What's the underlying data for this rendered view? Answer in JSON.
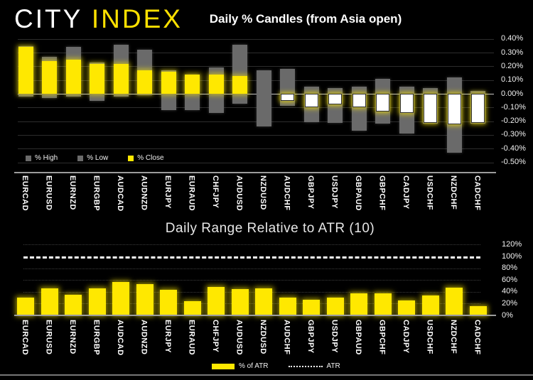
{
  "header": {
    "logo_city": "CITY",
    "logo_index": "INDEX"
  },
  "colors": {
    "background": "#000000",
    "bar_yellow": "#ffe800",
    "bar_gray": "#6a6a6a",
    "negative_close_fill": "#ffffff",
    "logo_index_yellow": "#ffe100",
    "text": "#ffffff"
  },
  "chart_data": [
    {
      "type": "bar",
      "subtype": "high-low-close-candles",
      "title": "Daily % Candles (from Asia open)",
      "categories": [
        "EURCAD",
        "EURUSD",
        "EURNZD",
        "EURGBP",
        "AUDCAD",
        "AUDNZD",
        "EURJPY",
        "EURAUD",
        "CHFJPY",
        "AUDUSD",
        "NZDUSD",
        "AUDCHF",
        "GBPJPY",
        "USDJPY",
        "GBPAUD",
        "GBPCHF",
        "CADJPY",
        "USDCHF",
        "NZDCHF",
        "CADCHF"
      ],
      "series": [
        {
          "name": "% High",
          "values": [
            0.35,
            0.27,
            0.34,
            0.23,
            0.36,
            0.32,
            0.17,
            0.14,
            0.19,
            0.36,
            0.17,
            0.18,
            0.05,
            0.04,
            0.05,
            0.11,
            0.05,
            0.04,
            0.12,
            0.02
          ]
        },
        {
          "name": "% Low",
          "values": [
            -0.02,
            -0.03,
            -0.02,
            -0.05,
            -0.02,
            -0.01,
            -0.12,
            -0.12,
            -0.14,
            -0.07,
            -0.24,
            -0.09,
            -0.21,
            -0.21,
            -0.27,
            -0.22,
            -0.29,
            -0.22,
            -0.43,
            -0.22
          ]
        },
        {
          "name": "% Close",
          "values": [
            0.34,
            0.24,
            0.25,
            0.22,
            0.22,
            0.17,
            0.16,
            0.14,
            0.14,
            0.13,
            0.0,
            -0.05,
            -0.1,
            -0.08,
            -0.1,
            -0.13,
            -0.14,
            -0.21,
            -0.22,
            -0.21
          ]
        }
      ],
      "ylim": [
        -0.5,
        0.4
      ],
      "ytick_labels": [
        "0.40%",
        "0.30%",
        "0.20%",
        "0.10%",
        "0.00%",
        "-0.10%",
        "-0.20%",
        "-0.30%",
        "-0.40%",
        "-0.50%"
      ],
      "grid": true,
      "legend": [
        "% High",
        "% Low",
        "% Close"
      ],
      "legend_position": "bottom-left"
    },
    {
      "type": "bar",
      "title": "Daily Range Relative to ATR (10)",
      "categories": [
        "EURCAD",
        "EURUSD",
        "EURNZD",
        "EURGBP",
        "AUDCAD",
        "AUDNZD",
        "EURJPY",
        "EURAUD",
        "CHFJPY",
        "AUDUSD",
        "NZDUSD",
        "AUDCHF",
        "GBPJPY",
        "USDJPY",
        "GBPAUD",
        "GBPCHF",
        "CADJPY",
        "USDCHF",
        "NZDCHF",
        "CADCHF"
      ],
      "values": [
        30,
        46,
        35,
        46,
        57,
        53,
        43,
        24,
        48,
        45,
        46,
        30,
        26,
        30,
        38,
        38,
        25,
        34,
        47,
        16
      ],
      "atr_reference_line": 100,
      "ylim": [
        0,
        120
      ],
      "ytick_labels": [
        "0%",
        "20%",
        "40%",
        "60%",
        "80%",
        "100%",
        "120%"
      ],
      "grid": true,
      "legend": [
        "% of ATR",
        "ATR"
      ],
      "legend_position": "bottom-center"
    }
  ]
}
